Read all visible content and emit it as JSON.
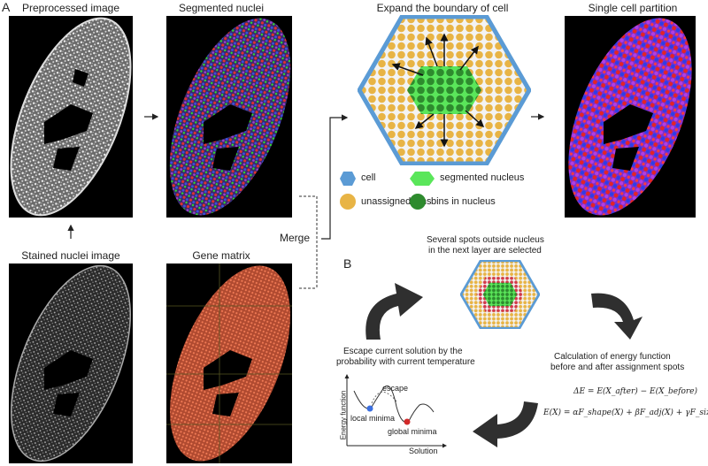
{
  "panel_a": {
    "letter": "A",
    "titles": {
      "preprocessed": "Preprocessed image",
      "segmented": "Segmented nuclei",
      "expand": "Expand the boundary of cell",
      "partition": "Single cell partition",
      "stained": "Stained nuclei image",
      "gene_matrix": "Gene matrix"
    },
    "merge_label": "Merge",
    "legend": {
      "cell": "cell",
      "segmented_nucleus": "segmented nucleus",
      "unassigned_bins": "unassigned bins",
      "bins_in_nucleus": "bins in nucleus"
    },
    "colors": {
      "cell": "#5b9bd5",
      "nucleus": "#5ae65a",
      "unassigned": "#e8b445",
      "bins_nucleus": "#2e8b2e",
      "gene": "#e06a4a"
    }
  },
  "panel_b": {
    "letter": "B",
    "top_text": [
      "Several spots outside nucleus",
      "in the next layer are selected"
    ],
    "right_text": [
      "Calculation of energy function",
      "before and after assignment spots"
    ],
    "left_text": [
      "Escape current solution by the",
      "probability with current temperature"
    ],
    "eq1": "ΔE = E(X_after) − E(X_before)",
    "eq2": "E(X) = αF_shape(X) + βF_adj(X) + γF_size(X)",
    "chart": {
      "ylabel": "Energy function",
      "xlabel": "Solution",
      "local_label": "local minima",
      "global_label": "global minima",
      "escape_label": "escape"
    }
  }
}
